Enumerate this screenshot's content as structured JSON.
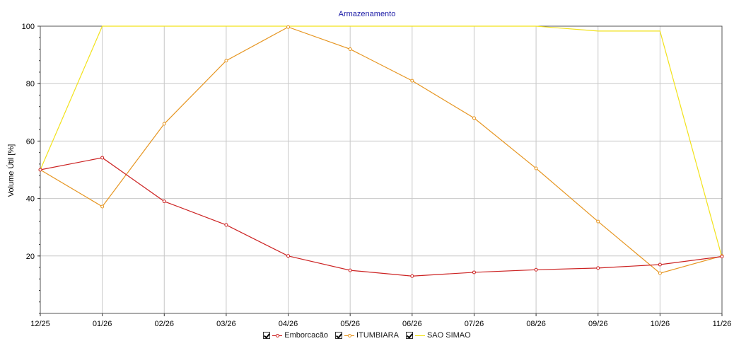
{
  "chart_data": {
    "type": "line",
    "title": "Armazenamento",
    "xlabel": "",
    "ylabel": "Volume Útil [%]",
    "x": [
      "12/25",
      "01/26",
      "02/26",
      "03/26",
      "04/26",
      "05/26",
      "06/26",
      "07/26",
      "08/26",
      "09/26",
      "10/26",
      "11/26"
    ],
    "ylim": [
      0,
      100
    ],
    "yticks": [
      20,
      40,
      60,
      80,
      100
    ],
    "grid": true,
    "legend_position": "bottom",
    "series": [
      {
        "name": "Emborcacão",
        "color": "#cc2222",
        "markers": true,
        "values": [
          50,
          54.2,
          39,
          30.8,
          20,
          15,
          13,
          14.3,
          15.2,
          15.8,
          17,
          19.8
        ]
      },
      {
        "name": "ITUMBIARA",
        "color": "#e69520",
        "markers": true,
        "values": [
          50,
          37.2,
          66,
          88,
          99.7,
          92,
          81,
          68,
          50.5,
          32,
          14,
          20
        ]
      },
      {
        "name": "SAO SIMAO",
        "color": "#f2e21a",
        "markers": false,
        "values": [
          50,
          100,
          100,
          100,
          100,
          100,
          100,
          100,
          100,
          98.3,
          98.3,
          19.5
        ]
      }
    ]
  }
}
